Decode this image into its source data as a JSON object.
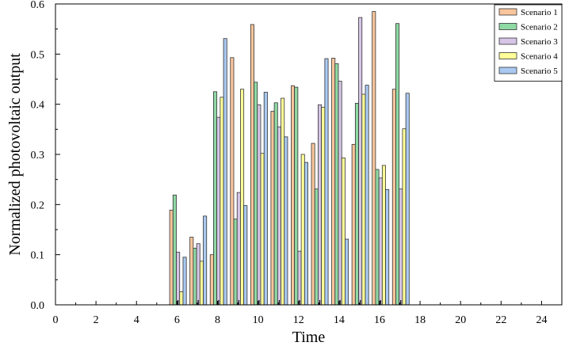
{
  "chart_data": {
    "type": "bar",
    "title": "",
    "xlabel": "Time",
    "ylabel": "Normalized photovoltaic output",
    "xlim": [
      0,
      25
    ],
    "ylim": [
      0,
      0.6
    ],
    "xticks": [
      0,
      2,
      4,
      6,
      8,
      10,
      12,
      14,
      16,
      18,
      20,
      22,
      24
    ],
    "yticks": [
      "0.0",
      "0.1",
      "0.2",
      "0.3",
      "0.4",
      "0.5",
      "0.6"
    ],
    "grid": false,
    "legend_position": "top-right",
    "categories": [
      6,
      7,
      8,
      9,
      10,
      11,
      12,
      13,
      14,
      15,
      16,
      17
    ],
    "series": [
      {
        "name": "Scenario 1",
        "color": "#f9c59c",
        "values": [
          0.189,
          0.135,
          0.1,
          0.493,
          0.559,
          0.386,
          0.437,
          0.322,
          0.492,
          0.32,
          0.585,
          0.43
        ]
      },
      {
        "name": "Scenario 2",
        "color": "#8fd9a4",
        "values": [
          0.219,
          0.113,
          0.425,
          0.171,
          0.444,
          0.403,
          0.434,
          0.231,
          0.481,
          0.402,
          0.27,
          0.561
        ]
      },
      {
        "name": "Scenario 3",
        "color": "#d6c5e6",
        "values": [
          0.105,
          0.122,
          0.374,
          0.224,
          0.399,
          0.355,
          0.107,
          0.399,
          0.446,
          0.573,
          0.253,
          0.231
        ]
      },
      {
        "name": "Scenario 4",
        "color": "#ffff99",
        "values": [
          0.026,
          0.087,
          0.414,
          0.43,
          0.302,
          0.412,
          0.3,
          0.394,
          0.293,
          0.42,
          0.278,
          0.351
        ]
      },
      {
        "name": "Scenario 5",
        "color": "#a9c9f1",
        "values": [
          0.095,
          0.177,
          0.531,
          0.198,
          0.424,
          0.335,
          0.284,
          0.491,
          0.131,
          0.438,
          0.23,
          0.422
        ]
      }
    ]
  }
}
